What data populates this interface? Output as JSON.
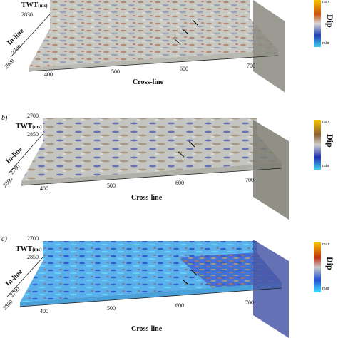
{
  "panels": [
    {
      "letter": "",
      "twt_label": "TWT",
      "twt_unit": "(ms)",
      "inline_label": "In-line",
      "crossline_label": "Cross-line",
      "twt_ticks": [
        "2830"
      ],
      "inline_ticks": [
        "2700",
        "2800"
      ],
      "crossline_ticks": [
        "400",
        "500",
        "600",
        "700"
      ],
      "colorbar_label": "Dip",
      "colorbar_max": "max",
      "colorbar_min": "min",
      "palette": "yellow-red-grey-blue",
      "colors": {
        "top": "#f5c400",
        "mid1": "#c85010",
        "mid2": "#d8d8d8",
        "mid3": "#2040b0",
        "bottom": "#40d0f0"
      }
    },
    {
      "letter": "b)",
      "twt_label": "TWT",
      "twt_unit": "(ms)",
      "inline_label": "In-line",
      "crossline_label": "Cross-line",
      "twt_ticks": [
        "2700",
        "2850"
      ],
      "inline_ticks": [
        "2700",
        "2800"
      ],
      "crossline_ticks": [
        "400",
        "500",
        "600",
        "700"
      ],
      "colorbar_label": "Dip",
      "colorbar_max": "max",
      "colorbar_min": "min",
      "palette": "yellow-brown-grey-blue",
      "colors": {
        "top": "#f5c400",
        "mid1": "#8a6030",
        "mid2": "#d0d0d0",
        "mid3": "#2030b0",
        "bottom": "#40d0f0"
      }
    },
    {
      "letter": "c)",
      "twt_label": "TWT",
      "twt_unit": "(ms)",
      "inline_label": "In-line",
      "crossline_label": "Cross-line",
      "twt_ticks": [
        "2700",
        "2850"
      ],
      "inline_ticks": [
        "2700",
        "2800"
      ],
      "crossline_ticks": [
        "400",
        "500",
        "600",
        "700"
      ],
      "colorbar_label": "Dip",
      "colorbar_max": "max",
      "colorbar_min": "min",
      "palette": "yellow-red-grey-cyan",
      "colors": {
        "top": "#f5c400",
        "mid1": "#c03010",
        "mid2": "#c8c8c8",
        "mid3": "#2050d0",
        "bottom": "#40e0ff"
      }
    }
  ]
}
